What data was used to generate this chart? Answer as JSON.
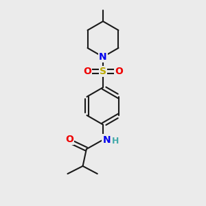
{
  "bg_color": "#ebebeb",
  "bond_color": "#1a1a1a",
  "bond_width": 1.5,
  "atom_colors": {
    "N": "#0000ee",
    "O": "#ee0000",
    "S": "#bbaa00",
    "H": "#44aaaa",
    "C": "#1a1a1a"
  },
  "font_size": 10,
  "figsize": [
    3.0,
    3.0
  ],
  "dpi": 100
}
